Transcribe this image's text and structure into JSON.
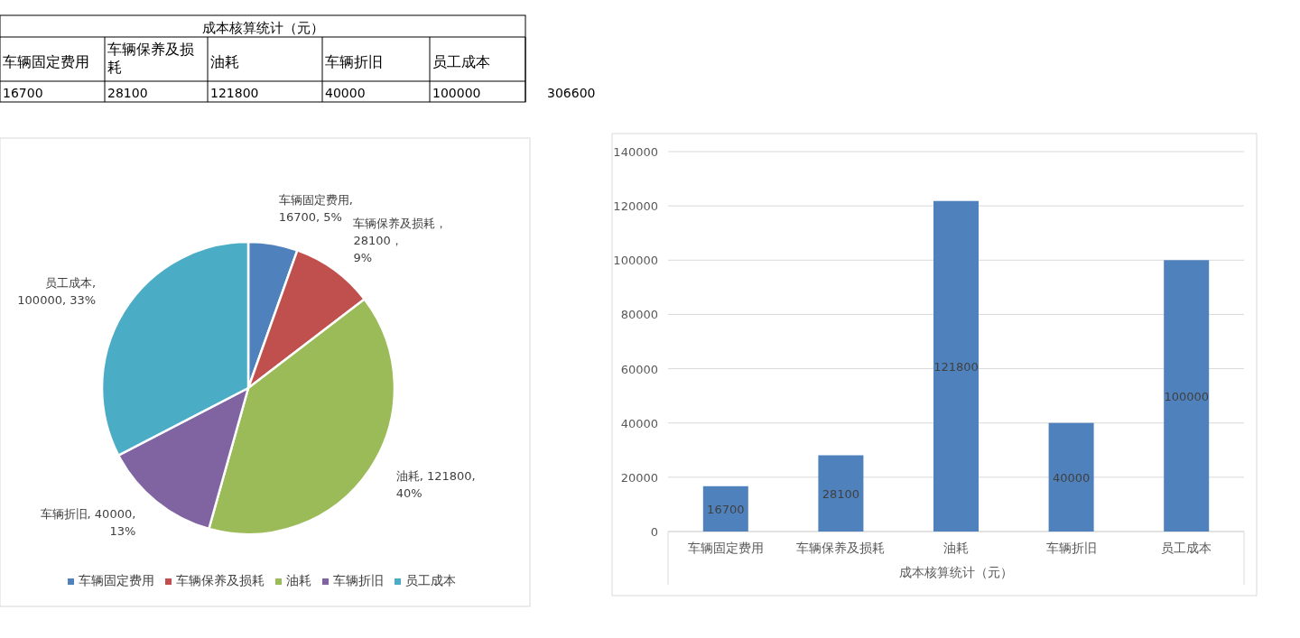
{
  "chart_data": [
    {
      "type": "other",
      "title": "成本核算统计（元）",
      "categories": [
        "车辆固定费用",
        "车辆保养及损耗",
        "油耗",
        "车辆折旧",
        "员工成本"
      ],
      "values": [
        16700,
        28100,
        121800,
        40000,
        100000
      ],
      "data_labels": true,
      "annotations": [
        "306600"
      ]
    },
    {
      "type": "pie",
      "categories": [
        "车辆固定费用",
        "车辆保养及损耗",
        "油耗",
        "车辆折旧",
        "员工成本"
      ],
      "values": [
        16700,
        28100,
        121800,
        40000,
        100000
      ],
      "colors": [
        "#4f81bd",
        "#c0504d",
        "#9bbb59",
        "#8064a2",
        "#4bacc6"
      ],
      "value_labels": [
        "车辆固定费用,\n16700, 5%",
        "车辆保养及损耗，\n28100，\n9%",
        "油耗, 121800,\n40%",
        "车辆折旧, 40000,\n13%",
        "员工成本,\n100000, 33%"
      ],
      "legend": "bottom"
    },
    {
      "type": "bar",
      "categories": [
        "车辆固定费用",
        "车辆保养及损耗",
        "油耗",
        "车辆折旧",
        "员工成本"
      ],
      "values": [
        16700,
        28100,
        121800,
        40000,
        100000
      ],
      "color": "#4f81bd",
      "xlabel": "成本核算统计（元）",
      "ylim": [
        0,
        140000
      ],
      "yticks": [
        0,
        20000,
        40000,
        60000,
        80000,
        100000,
        120000,
        140000
      ],
      "grid": "y",
      "data_labels": true
    }
  ]
}
